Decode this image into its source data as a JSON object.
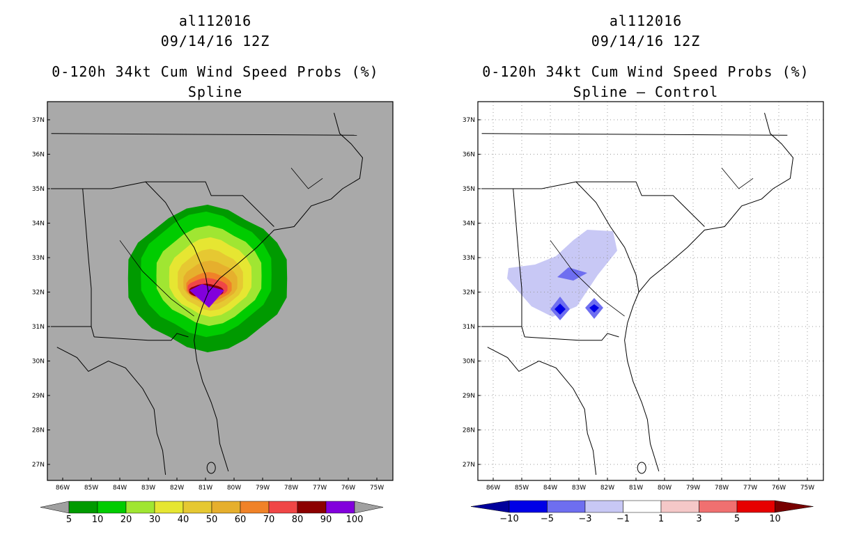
{
  "storm_id": "al112016",
  "datetime": "09/14/16 12Z",
  "product_title": "0-120h 34kt Cum Wind Speed Probs (%)",
  "left_panel": {
    "subtitle": "Spline",
    "colorbar": {
      "labels": [
        "5",
        "10",
        "20",
        "30",
        "40",
        "50",
        "60",
        "70",
        "80",
        "90",
        "100"
      ],
      "colors": [
        "#009a00",
        "#00cc00",
        "#a0e632",
        "#e6e632",
        "#e6c832",
        "#e6af2d",
        "#f08228",
        "#f04646",
        "#8c0000",
        "#8200dc"
      ],
      "extend_color": "#a0a0a0"
    }
  },
  "right_panel": {
    "subtitle": "Spline – Control",
    "colorbar": {
      "labels": [
        "−10",
        "−5",
        "−3",
        "−1",
        "1",
        "3",
        "5",
        "10"
      ],
      "colors": [
        "#0000e6",
        "#6e6ef0",
        "#c8c8f5",
        "#ffffff",
        "#f5c8c8",
        "#f07070",
        "#e60000"
      ],
      "low_color": "#00009b",
      "high_color": "#780000"
    }
  },
  "axes": {
    "lat_labels": [
      "37N",
      "36N",
      "35N",
      "34N",
      "33N",
      "32N",
      "31N",
      "30N",
      "29N",
      "28N",
      "27N"
    ],
    "lon_labels": [
      "86W",
      "85W",
      "84W",
      "83W",
      "82W",
      "81W",
      "80W",
      "79W",
      "78W",
      "77W",
      "76W",
      "75W"
    ]
  },
  "colors": {
    "land_bg": "#a9a9a9",
    "water_bg": "#ffffff"
  }
}
